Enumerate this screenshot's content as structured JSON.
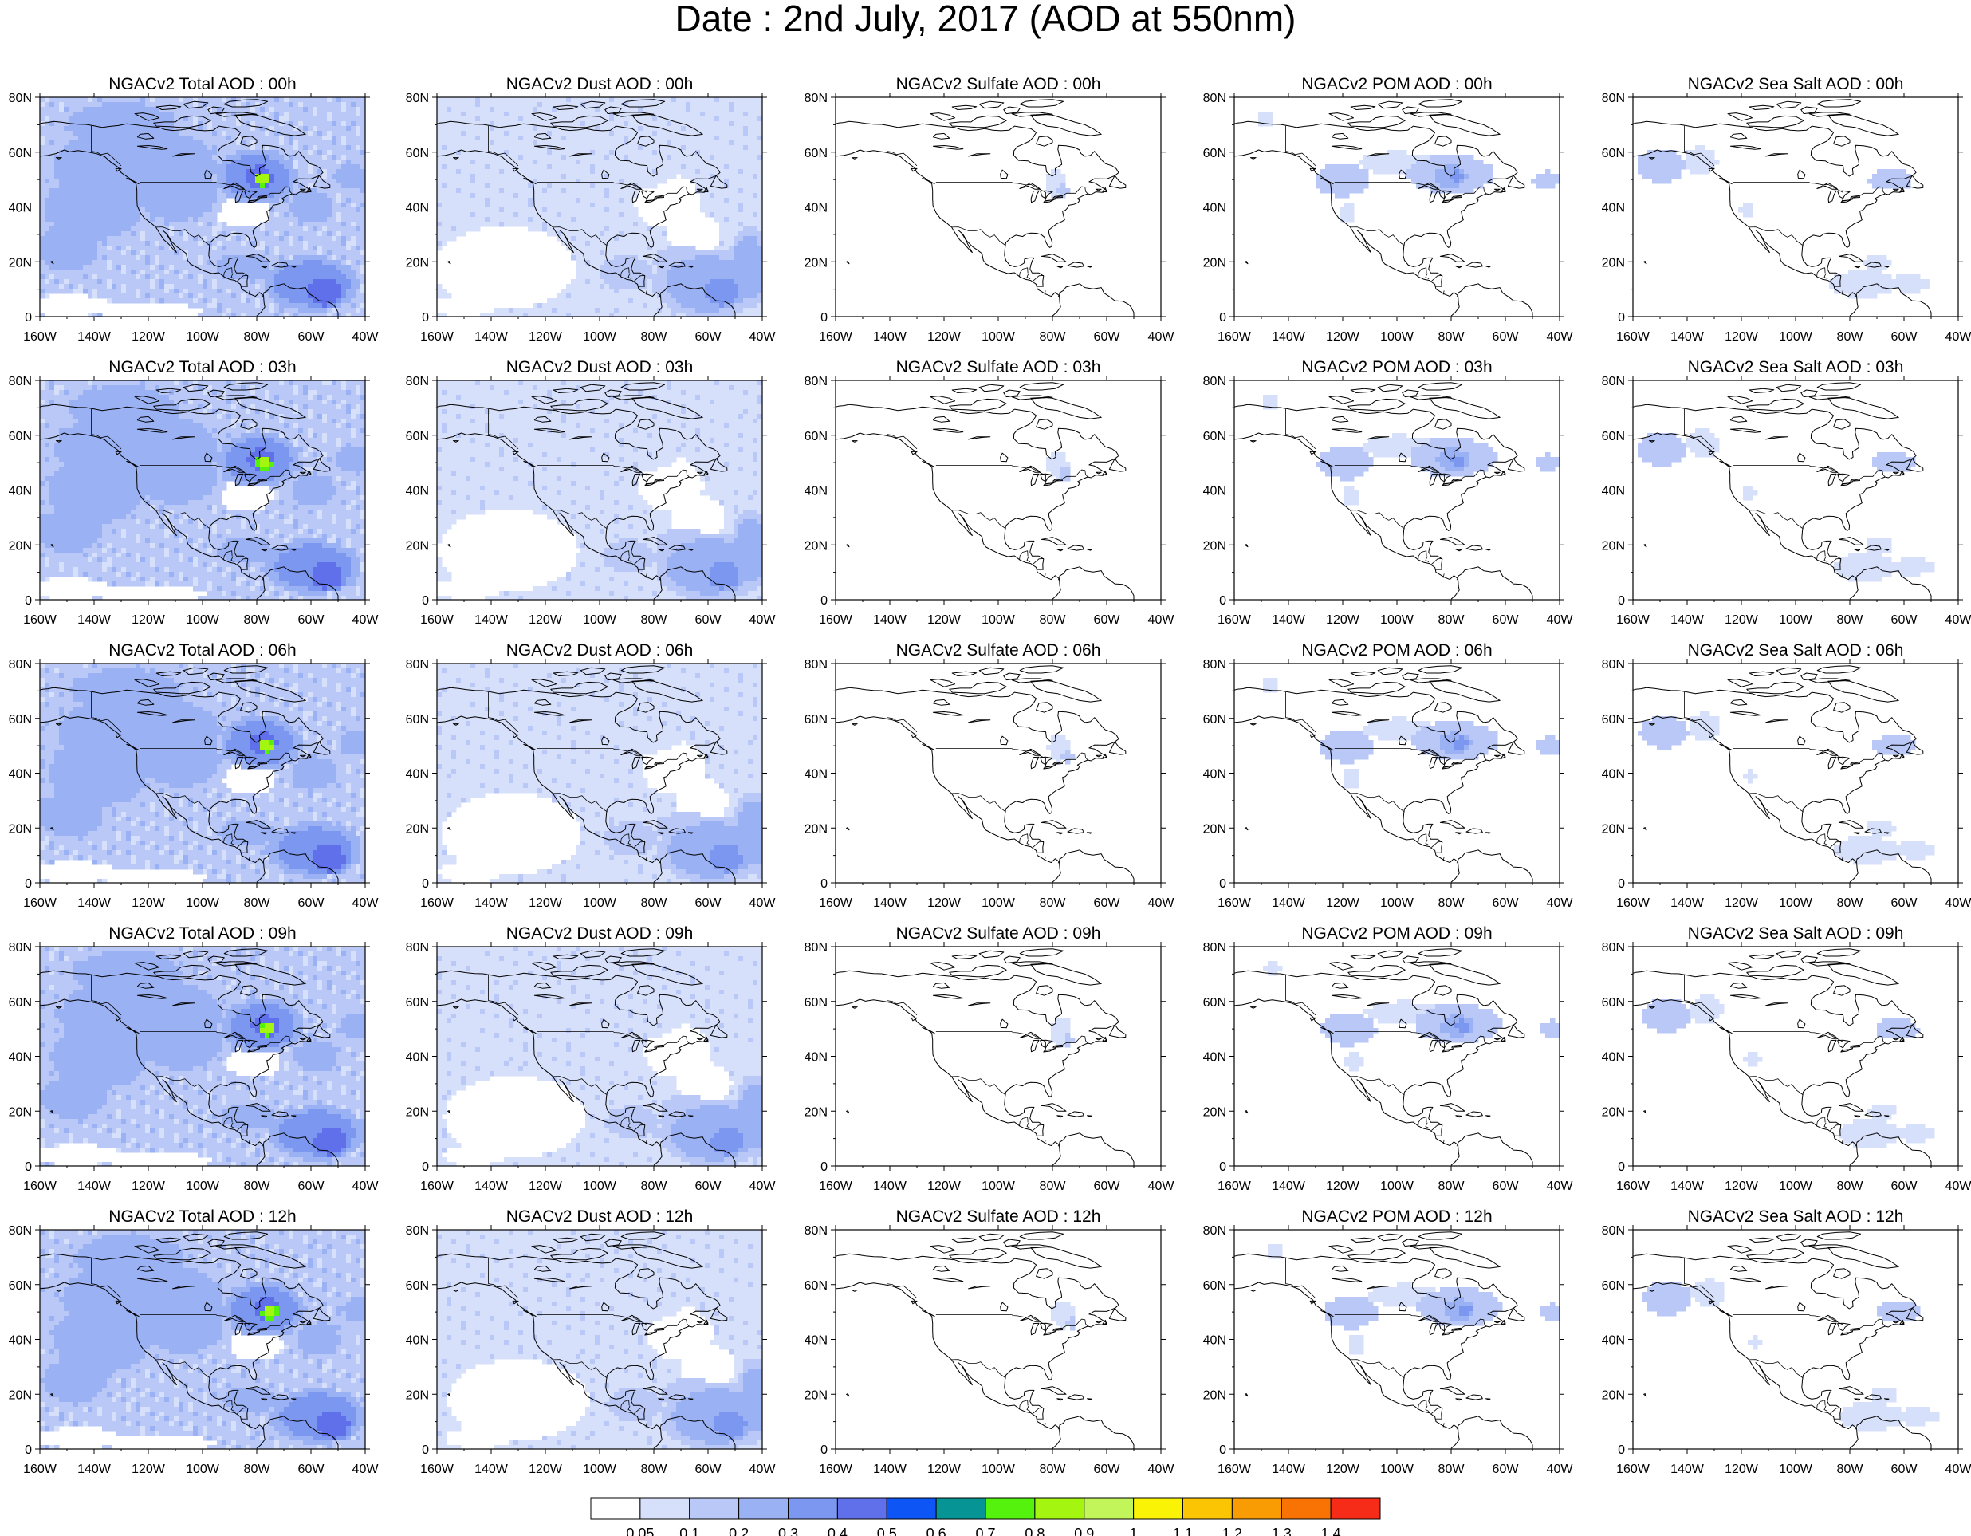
{
  "title": "Date : 2nd July, 2017 (AOD at 550nm)",
  "panel_titles": [
    [
      "NGACv2 Total AOD : 00h",
      "NGACv2 Dust AOD : 00h",
      "NGACv2 Sulfate AOD : 00h",
      "NGACv2 POM AOD : 00h",
      "NGACv2 Sea Salt AOD : 00h"
    ],
    [
      "NGACv2 Total AOD : 03h",
      "NGACv2 Dust AOD : 03h",
      "NGACv2 Sulfate AOD : 03h",
      "NGACv2 POM AOD : 03h",
      "NGACv2 Sea Salt AOD : 03h"
    ],
    [
      "NGACv2 Total AOD : 06h",
      "NGACv2 Dust AOD : 06h",
      "NGACv2 Sulfate AOD : 06h",
      "NGACv2 POM AOD : 06h",
      "NGACv2 Sea Salt AOD : 06h"
    ],
    [
      "NGACv2 Total AOD : 09h",
      "NGACv2 Dust AOD : 09h",
      "NGACv2 Sulfate AOD : 09h",
      "NGACv2 POM AOD : 09h",
      "NGACv2 Sea Salt  AOD : 09h"
    ],
    [
      "NGACv2 Total AOD  : 12h",
      "NGACv2 Dust AOD : 12h",
      "NGACv2 Sulfate AOD : 12h",
      "NGACv2 POM  AOD : 12h",
      "NGACv2 Sea Salt  AOD : 12h"
    ]
  ],
  "map": {
    "lon_range": [
      -160,
      -40
    ],
    "lat_range": [
      0,
      80
    ],
    "lon_tick_labels": [
      "160W",
      "140W",
      "120W",
      "100W",
      "80W",
      "60W",
      "40W"
    ],
    "lat_tick_labels": [
      "0",
      "20N",
      "40N",
      "60N",
      "80N"
    ],
    "region": "North America"
  },
  "colorbar": {
    "labels": [
      "0.05",
      "0.1",
      "0.2",
      "0.3",
      "0.4",
      "0.5",
      "0.6",
      "0.7",
      "0.8",
      "0.9",
      "1",
      "1.1",
      "1.2",
      "1.3",
      "1.4"
    ],
    "colors": [
      "#ffffff",
      "#d7e0fa",
      "#b9c8f7",
      "#9ab1f4",
      "#7c97f0",
      "#5f70ea",
      "#0d55f5",
      "#069494",
      "#54f20c",
      "#a4f510",
      "#c2f55a",
      "#fbf306",
      "#fbc504",
      "#f99b03",
      "#f87303",
      "#f62b18"
    ]
  },
  "species_colors": {
    "shading_light": "#d7e0fa",
    "shading_medium": "#b9c8f7",
    "shading_strong": "#7c97f0",
    "hotspot_green": "#54f20c"
  }
}
